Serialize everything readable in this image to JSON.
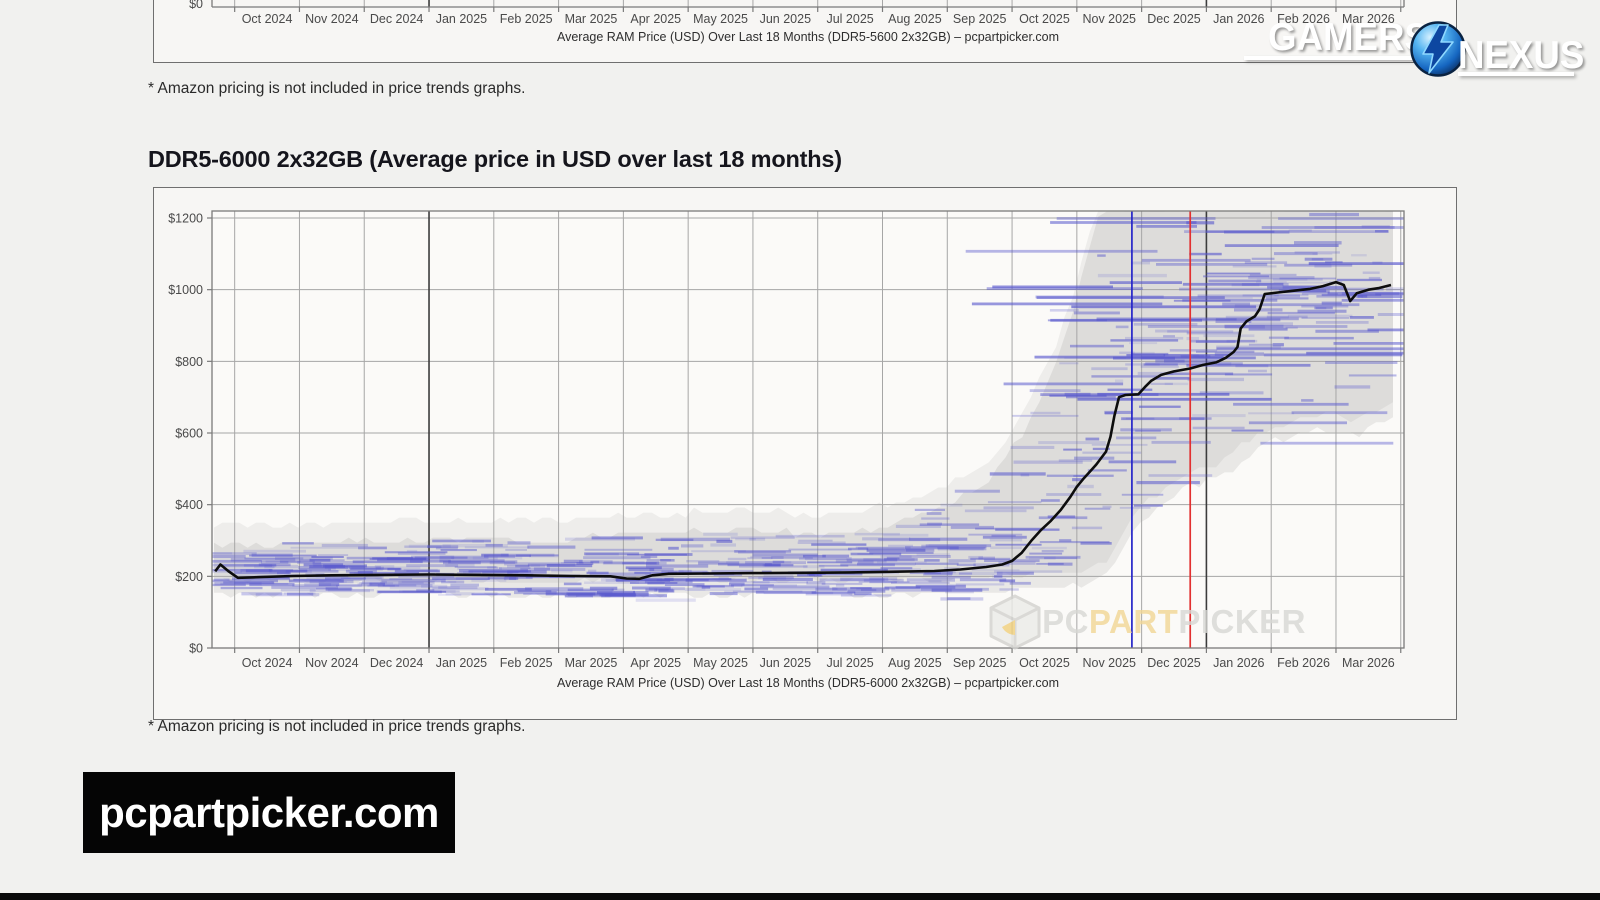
{
  "heading": "DDR5-6000 2x32GB (Average price in USD over last 18 months)",
  "footnotes": {
    "top": "* Amazon pricing is not included in price trends graphs.",
    "bottom": "* Amazon pricing is not included in price trends graphs."
  },
  "site_badge": "pcpartpicker.com",
  "logo": {
    "word1": "GAMERS",
    "word2": "NEXUS",
    "emblem": "gn-globe-bolt-icon",
    "text_color": "#ffffff",
    "emblem_blue": "#1e7fd0"
  },
  "watermark": {
    "pc": "PC",
    "part": "PART",
    "picker": "PICKER",
    "icon": "pcpartpicker-cube-icon"
  },
  "colors": {
    "background": "#f1f1ef",
    "chart_bg": "#f7f6f4",
    "plot_bg": "#fbfaf8",
    "grid": "#a6a6a6",
    "grid_year": "#3c3c3c",
    "frame": "#7a7a7a",
    "avg_line": "#0d0d0d",
    "scatter_blue": "#5858cd",
    "band_gray": "#000000",
    "marker_blue": "#2525c8",
    "marker_red": "#e23030",
    "tick_text": "#4a4a4a"
  },
  "chart_data": [
    {
      "type": "line",
      "note": "top chart cropped by viewport; only x-axis and caption visible",
      "categories": [
        "Oct 2024",
        "Nov 2024",
        "Dec 2024",
        "Jan 2025",
        "Feb 2025",
        "Mar 2025",
        "Apr 2025",
        "May 2025",
        "Jun 2025",
        "Jul 2025",
        "Aug 2025",
        "Sep 2025",
        "Oct 2025",
        "Nov 2025",
        "Dec 2025",
        "Jan 2026",
        "Feb 2026",
        "Mar 2026"
      ],
      "visible_ytick": "$0",
      "caption": "Average RAM Price (USD) Over Last 18 Months (DDR5-5600 2x32GB) – pcpartpicker.com"
    },
    {
      "type": "line",
      "title": "DDR5-6000 2x32GB (Average price in USD over last 18 months)",
      "caption": "Average RAM Price (USD) Over Last 18 Months (DDR5-6000 2x32GB) – pcpartpicker.com",
      "categories": [
        "Oct 2024",
        "Nov 2024",
        "Dec 2024",
        "Jan 2025",
        "Feb 2025",
        "Mar 2025",
        "Apr 2025",
        "May 2025",
        "Jun 2025",
        "Jul 2025",
        "Aug 2025",
        "Sep 2025",
        "Oct 2025",
        "Nov 2025",
        "Dec 2025",
        "Jan 2026",
        "Feb 2026",
        "Mar 2026"
      ],
      "ylabel_ticks": [
        "$0",
        "$200",
        "$400",
        "$600",
        "$800",
        "$1000",
        "$1200"
      ],
      "ylim": [
        0,
        1200
      ],
      "grid": true,
      "year_boundary_months": [
        3,
        15
      ],
      "avg_price_usd_by_month_offset": [
        [
          -0.3,
          214
        ],
        [
          -0.22,
          233
        ],
        [
          -0.1,
          215
        ],
        [
          0.05,
          196
        ],
        [
          0.4,
          198
        ],
        [
          0.9,
          201
        ],
        [
          1.5,
          203
        ],
        [
          2.2,
          204
        ],
        [
          3.0,
          205
        ],
        [
          3.8,
          204
        ],
        [
          4.5,
          203
        ],
        [
          5.2,
          201
        ],
        [
          5.8,
          200
        ],
        [
          6.05,
          194
        ],
        [
          6.25,
          193
        ],
        [
          6.45,
          203
        ],
        [
          6.7,
          207
        ],
        [
          7.3,
          208
        ],
        [
          8.0,
          209
        ],
        [
          8.8,
          210
        ],
        [
          9.5,
          211
        ],
        [
          10.2,
          213
        ],
        [
          10.8,
          215
        ],
        [
          11.2,
          219
        ],
        [
          11.6,
          226
        ],
        [
          11.85,
          233
        ],
        [
          12.0,
          243
        ],
        [
          12.15,
          266
        ],
        [
          12.3,
          300
        ],
        [
          12.45,
          330
        ],
        [
          12.6,
          355
        ],
        [
          12.75,
          385
        ],
        [
          12.9,
          422
        ],
        [
          13.0,
          450
        ],
        [
          13.1,
          472
        ],
        [
          13.2,
          492
        ],
        [
          13.3,
          512
        ],
        [
          13.45,
          548
        ],
        [
          13.52,
          590
        ],
        [
          13.58,
          648
        ],
        [
          13.65,
          700
        ],
        [
          13.75,
          706
        ],
        [
          13.95,
          708
        ],
        [
          14.05,
          728
        ],
        [
          14.15,
          746
        ],
        [
          14.3,
          762
        ],
        [
          14.5,
          772
        ],
        [
          14.75,
          780
        ],
        [
          14.95,
          790
        ],
        [
          15.15,
          797
        ],
        [
          15.3,
          810
        ],
        [
          15.42,
          826
        ],
        [
          15.48,
          840
        ],
        [
          15.53,
          892
        ],
        [
          15.62,
          912
        ],
        [
          15.75,
          926
        ],
        [
          15.82,
          945
        ],
        [
          15.9,
          988
        ],
        [
          16.1,
          992
        ],
        [
          16.35,
          997
        ],
        [
          16.6,
          1002
        ],
        [
          16.8,
          1010
        ],
        [
          17.0,
          1021
        ],
        [
          17.12,
          1013
        ],
        [
          17.22,
          968
        ],
        [
          17.32,
          990
        ],
        [
          17.5,
          1000
        ],
        [
          17.65,
          1004
        ],
        [
          17.85,
          1013
        ]
      ],
      "listing_range_envelope": [
        [
          -0.3,
          152,
          288
        ],
        [
          1,
          148,
          294
        ],
        [
          3,
          146,
          298
        ],
        [
          5,
          145,
          305
        ],
        [
          6,
          148,
          318
        ],
        [
          7,
          150,
          322
        ],
        [
          8,
          150,
          330
        ],
        [
          9,
          153,
          312
        ],
        [
          10,
          150,
          338
        ],
        [
          10.7,
          150,
          375
        ],
        [
          11.2,
          152,
          415
        ],
        [
          11.7,
          155,
          470
        ],
        [
          12.0,
          158,
          555
        ],
        [
          12.3,
          162,
          645
        ],
        [
          12.6,
          168,
          760
        ],
        [
          12.85,
          172,
          880
        ],
        [
          13.05,
          178,
          1010
        ],
        [
          13.25,
          185,
          1160
        ],
        [
          13.4,
          195,
          1225
        ],
        [
          13.6,
          240,
          1225
        ],
        [
          13.8,
          310,
          1225
        ],
        [
          14.0,
          355,
          1225
        ],
        [
          14.3,
          400,
          1225
        ],
        [
          14.6,
          435,
          1225
        ],
        [
          14.9,
          460,
          1225
        ],
        [
          15.2,
          480,
          1225
        ],
        [
          15.45,
          505,
          1225
        ],
        [
          15.6,
          535,
          1225
        ],
        [
          15.8,
          560,
          1225
        ],
        [
          16.0,
          575,
          1225
        ],
        [
          16.3,
          590,
          1225
        ],
        [
          16.6,
          605,
          1225
        ],
        [
          16.9,
          615,
          1225
        ],
        [
          17.1,
          600,
          1225
        ],
        [
          17.3,
          590,
          1225
        ],
        [
          17.5,
          610,
          1225
        ],
        [
          17.7,
          625,
          1225
        ],
        [
          17.85,
          640,
          1225
        ]
      ],
      "marker_lines": [
        {
          "month_offset": 13.85,
          "approx_date": "late Nov 2025",
          "color": "#2525c8"
        },
        {
          "month_offset": 14.75,
          "approx_date": "late Dec 2025",
          "color": "#e23030"
        }
      ],
      "scatter": {
        "short_segments": 680,
        "long_right_segments": 52,
        "seed": 1234
      }
    }
  ]
}
